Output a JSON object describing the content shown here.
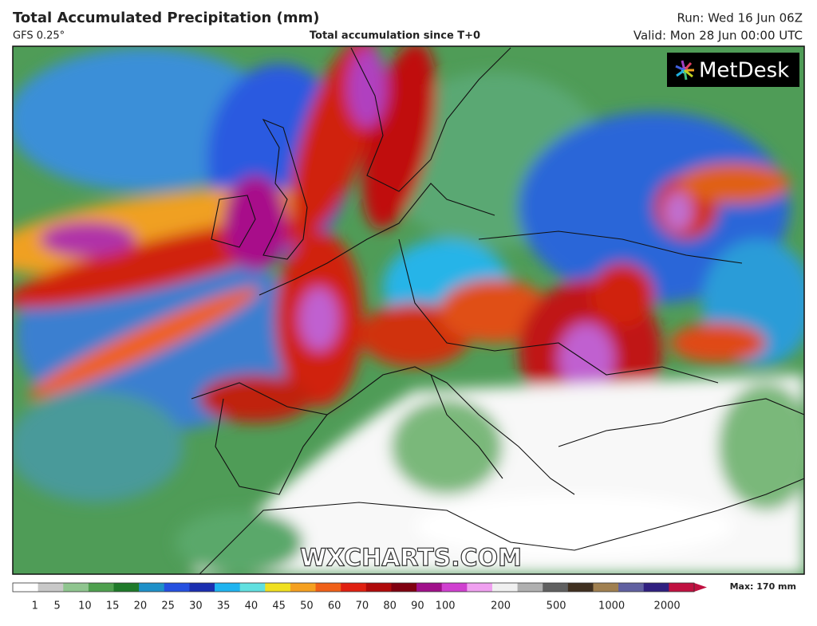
{
  "header": {
    "title": "Total Accumulated Precipitation (mm)",
    "model": "GFS 0.25°",
    "subtitle": "Total accumulation since T+0",
    "run": "Run: Wed 16 Jun 06Z",
    "valid": "Valid: Mon 28 Jun 00:00 UTC"
  },
  "logo": "MetDesk",
  "watermark": "WXCHARTS.COM",
  "colorbar": {
    "labels": [
      "1",
      "5",
      "10",
      "15",
      "20",
      "25",
      "30",
      "35",
      "40",
      "45",
      "50",
      "60",
      "70",
      "80",
      "90",
      "100",
      "200",
      "500",
      "1000",
      "2000"
    ],
    "colors": [
      "#ffffff",
      "#c8c8c8",
      "#8fc58f",
      "#4fa04f",
      "#1f7a2a",
      "#1e90c8",
      "#2550e0",
      "#1b2fb0",
      "#1fb4f0",
      "#60e0e0",
      "#f0e020",
      "#f5a020",
      "#f06018",
      "#e02010",
      "#b00a0a",
      "#800010",
      "#a0108a",
      "#d040d0",
      "#f0a0f0",
      "#f0f0f0",
      "#b0b0b0",
      "#606060",
      "#403020",
      "#a08050",
      "#6060a0",
      "#302080",
      "#c01040"
    ],
    "max": "Max: 170 mm"
  }
}
